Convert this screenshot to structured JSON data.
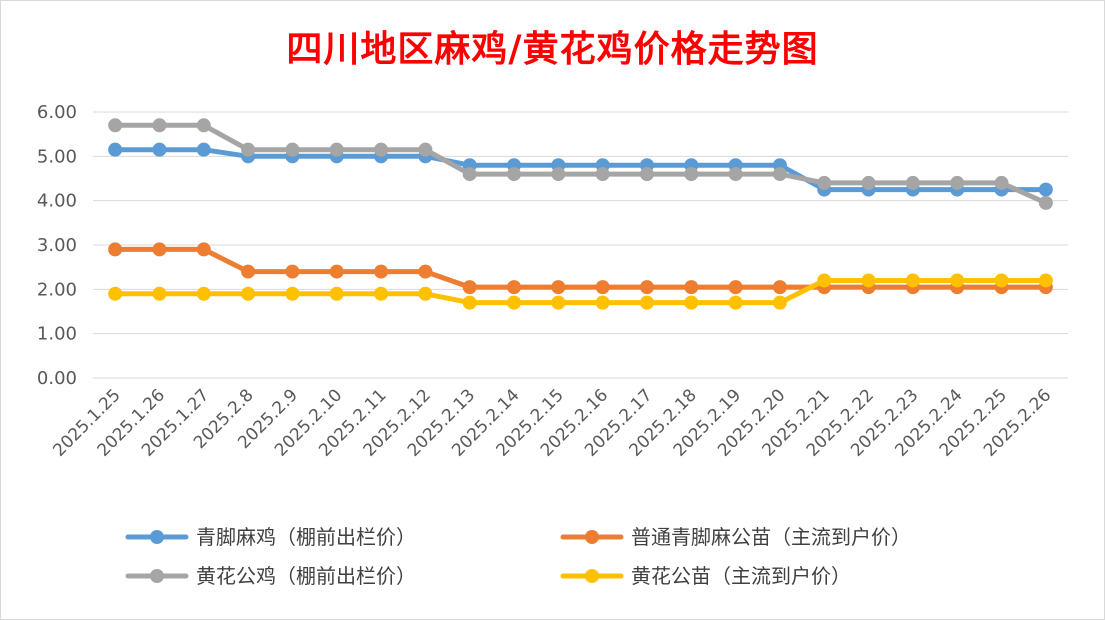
{
  "chart_data": {
    "type": "line",
    "title": "四川地区麻鸡/黄花鸡价格走势图",
    "xlabel": "",
    "ylabel": "",
    "ylim": [
      0,
      6
    ],
    "yticks": [
      "0.00",
      "1.00",
      "2.00",
      "3.00",
      "4.00",
      "5.00",
      "6.00"
    ],
    "grid": true,
    "legend_position": "bottom",
    "categories": [
      "2025.1.25",
      "2025.1.26",
      "2025.1.27",
      "2025.2.8",
      "2025.2.9",
      "2025.2.10",
      "2025.2.11",
      "2025.2.12",
      "2025.2.13",
      "2025.2.14",
      "2025.2.15",
      "2025.2.16",
      "2025.2.17",
      "2025.2.18",
      "2025.2.19",
      "2025.2.20",
      "2025.2.21",
      "2025.2.22",
      "2025.2.23",
      "2025.2.24",
      "2025.2.25",
      "2025.2.26"
    ],
    "series": [
      {
        "name": "青脚麻鸡（棚前出栏价）",
        "color": "#5b9bd5",
        "values": [
          5.15,
          5.15,
          5.15,
          5.0,
          5.0,
          5.0,
          5.0,
          5.0,
          4.8,
          4.8,
          4.8,
          4.8,
          4.8,
          4.8,
          4.8,
          4.8,
          4.25,
          4.25,
          4.25,
          4.25,
          4.25,
          4.25
        ]
      },
      {
        "name": "普通青脚麻公苗（主流到户价）",
        "color": "#ed7d31",
        "values": [
          2.9,
          2.9,
          2.9,
          2.4,
          2.4,
          2.4,
          2.4,
          2.4,
          2.05,
          2.05,
          2.05,
          2.05,
          2.05,
          2.05,
          2.05,
          2.05,
          2.05,
          2.05,
          2.05,
          2.05,
          2.05,
          2.05
        ]
      },
      {
        "name": "黄花公鸡（棚前出栏价）",
        "color": "#a5a5a5",
        "values": [
          5.7,
          5.7,
          5.7,
          5.15,
          5.15,
          5.15,
          5.15,
          5.15,
          4.6,
          4.6,
          4.6,
          4.6,
          4.6,
          4.6,
          4.6,
          4.6,
          4.4,
          4.4,
          4.4,
          4.4,
          4.4,
          3.95
        ]
      },
      {
        "name": "黄花公苗（主流到户价）",
        "color": "#ffc000",
        "values": [
          1.9,
          1.9,
          1.9,
          1.9,
          1.9,
          1.9,
          1.9,
          1.9,
          1.7,
          1.7,
          1.7,
          1.7,
          1.7,
          1.7,
          1.7,
          1.7,
          2.2,
          2.2,
          2.2,
          2.2,
          2.2,
          2.2
        ]
      }
    ]
  }
}
